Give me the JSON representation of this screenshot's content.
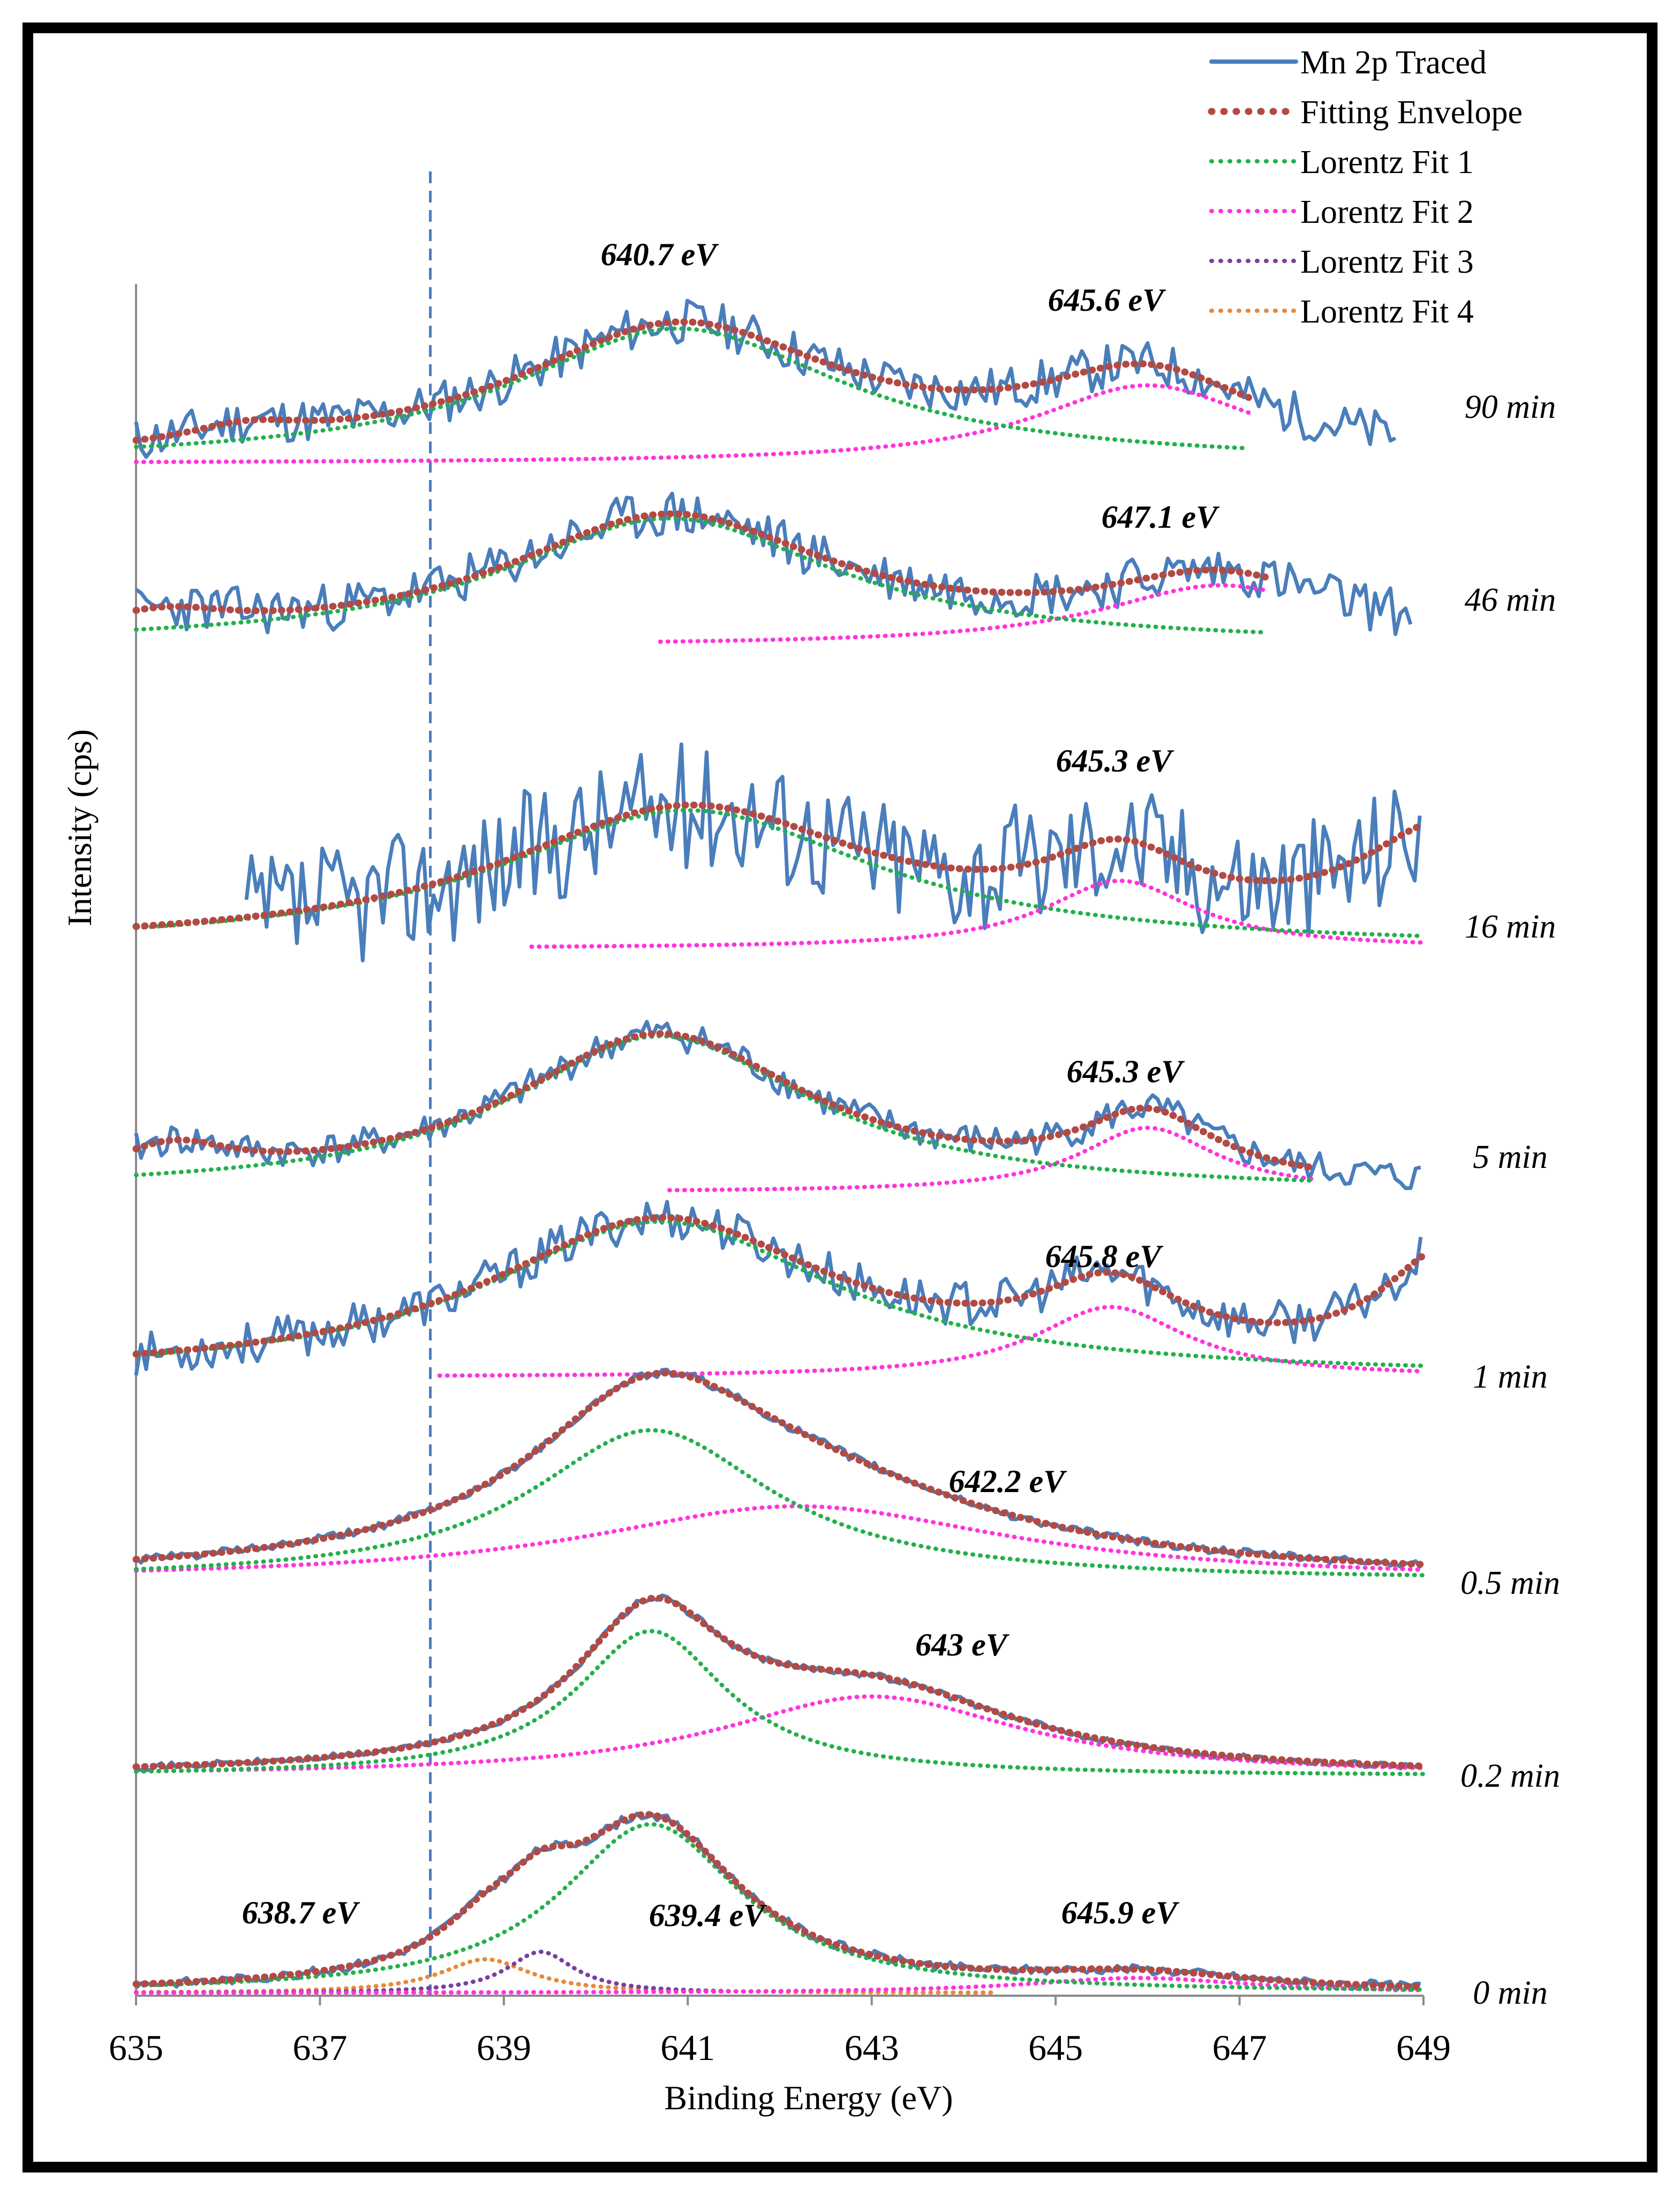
{
  "chart_data": {
    "type": "line",
    "xlabel": "Binding Energy (eV)",
    "ylabel": "Intensity (cps)",
    "xlim": [
      635,
      649
    ],
    "xticks": [
      "635",
      "637",
      "639",
      "641",
      "643",
      "645",
      "647",
      "649"
    ],
    "reference_line_x": 638.2,
    "legend": [
      {
        "name": "Mn 2p Traced",
        "color": "#4a7ebb",
        "style": "solid"
      },
      {
        "name": "Fitting Envelope",
        "color": "#b24a44",
        "style": "dotted"
      },
      {
        "name": "Lorentz Fit 1",
        "color": "#22b04b",
        "style": "dotted"
      },
      {
        "name": "Lorentz Fit 2",
        "color": "#ff33dd",
        "style": "dotted"
      },
      {
        "name": "Lorentz Fit 3",
        "color": "#7a3fa0",
        "style": "dotted"
      },
      {
        "name": "Lorentz Fit 4",
        "color": "#e8893a",
        "style": "dotted"
      }
    ],
    "panels": [
      {
        "time": "90 min",
        "peak_labels": [
          {
            "text": "640.7 eV",
            "x": 640.7
          },
          {
            "text": "645.6 eV",
            "x": 645.6
          }
        ],
        "fit1": {
          "center": 640.9,
          "width": 2.2,
          "height": 0.95,
          "from": 635.0,
          "to": 647.1
        },
        "fit2": {
          "center": 646.0,
          "width": 1.5,
          "height": 0.55,
          "from": 635.0,
          "to": 647.1
        },
        "envelope": {
          "from": 635.0,
          "to": 647.1,
          "bumps": [
            {
              "center": 636.2,
              "width": 0.8,
              "height": 0.12
            }
          ]
        },
        "traced": {
          "from": 635.0,
          "to": 648.7,
          "noise": 0.16,
          "seed": 11
        }
      },
      {
        "time": "46 min",
        "peak_labels": [
          {
            "text": "647.1 eV",
            "x": 647.1
          }
        ],
        "fit1": {
          "center": 640.8,
          "width": 2.2,
          "height": 0.95,
          "from": 635.0,
          "to": 647.3
        },
        "fit2": {
          "center": 646.8,
          "width": 1.6,
          "height": 0.45,
          "from": 640.7,
          "to": 647.3
        },
        "envelope": {
          "from": 635.0,
          "to": 647.3,
          "bumps": [
            {
              "center": 635.3,
              "width": 0.9,
              "height": 0.15
            }
          ]
        },
        "traced": {
          "from": 635.0,
          "to": 648.9,
          "noise": 0.18,
          "seed": 23
        }
      },
      {
        "time": "16 min",
        "peak_labels": [
          {
            "text": "645.3 eV",
            "x": 645.3
          }
        ],
        "fit1": {
          "center": 641.0,
          "width": 2.5,
          "height": 0.92,
          "from": 635.0,
          "to": 649.0
        },
        "fit2": {
          "center": 645.7,
          "width": 1.0,
          "height": 0.45,
          "from": 639.3,
          "to": 649.0
        },
        "envelope": {
          "from": 635.0,
          "to": 649.0,
          "bumps": [
            {
              "center": 649.3,
              "width": 1.2,
              "height": 0.75
            }
          ]
        },
        "traced": {
          "from": 636.2,
          "to": 649.0,
          "noise": 0.42,
          "seed": 37
        }
      },
      {
        "time": "5 min",
        "peak_labels": [
          {
            "text": "645.3 eV",
            "x": 645.3
          }
        ],
        "fit1": {
          "center": 640.7,
          "width": 2.0,
          "height": 0.97,
          "from": 635.0,
          "to": 647.8
        },
        "fit2": {
          "center": 646.0,
          "width": 0.9,
          "height": 0.4,
          "from": 640.8,
          "to": 647.8
        },
        "envelope": {
          "from": 635.0,
          "to": 647.8,
          "bumps": [
            {
              "center": 635.4,
              "width": 0.8,
              "height": 0.2
            }
          ]
        },
        "traced": {
          "from": 635.0,
          "to": 649.0,
          "noise": 0.1,
          "seed": 41
        }
      },
      {
        "time": "1 min",
        "peak_labels": [
          {
            "text": "645.8 eV",
            "x": 645.8
          }
        ],
        "fit1": {
          "center": 640.7,
          "width": 2.3,
          "height": 1.0,
          "from": 635.0,
          "to": 649.0
        },
        "fit2": {
          "center": 645.6,
          "width": 1.0,
          "height": 0.45,
          "from": 638.3,
          "to": 649.0
        },
        "envelope": {
          "from": 635.0,
          "to": 649.0,
          "bumps": [
            {
              "center": 649.3,
              "width": 0.9,
              "height": 0.75
            }
          ]
        },
        "traced": {
          "from": 635.0,
          "to": 649.0,
          "noise": 0.14,
          "seed": 53
        }
      },
      {
        "time": "0.5 min",
        "peak_labels": [
          {
            "text": "642.2 eV",
            "x": 642.2
          }
        ],
        "fit1": {
          "center": 640.6,
          "width": 1.6,
          "height": 0.85,
          "from": 635.0,
          "to": 649.0
        },
        "fit2": {
          "center": 642.2,
          "width": 2.8,
          "height": 0.42,
          "from": 635.0,
          "to": 649.0
        },
        "envelope": {
          "from": 635.0,
          "to": 649.0,
          "bumps": []
        },
        "traced": {
          "from": 635.0,
          "to": 649.0,
          "noise": 0.025,
          "seed": 61
        }
      },
      {
        "time": "0.2 min",
        "peak_labels": [
          {
            "text": "643 eV",
            "x": 643
          }
        ],
        "fit1": {
          "center": 640.6,
          "width": 1.0,
          "height": 0.82,
          "from": 635.0,
          "to": 649.0
        },
        "fit2": {
          "center": 643.0,
          "width": 2.0,
          "height": 0.45,
          "from": 635.0,
          "to": 649.0
        },
        "envelope": {
          "from": 635.0,
          "to": 649.0,
          "bumps": []
        },
        "traced": {
          "from": 635.0,
          "to": 649.0,
          "noise": 0.02,
          "seed": 71
        }
      },
      {
        "time": "0 min",
        "peak_labels": [
          {
            "text": "638.7 eV",
            "x": 638.7
          },
          {
            "text": "639.4 eV",
            "x": 639.4
          },
          {
            "text": "645.9 eV",
            "x": 645.9
          }
        ],
        "fit1": {
          "center": 640.6,
          "width": 1.2,
          "height": 0.9,
          "from": 635.0,
          "to": 649.0
        },
        "fit2": {
          "center": 645.9,
          "width": 1.5,
          "height": 0.08,
          "from": 635.0,
          "to": 649.0
        },
        "fit3": {
          "center": 639.4,
          "width": 0.45,
          "height": 0.22,
          "from": 635.0,
          "to": 641.5
        },
        "fit4": {
          "center": 638.8,
          "width": 0.6,
          "height": 0.18,
          "from": 635.0,
          "to": 644.3
        },
        "envelope": {
          "from": 635.0,
          "to": 649.0,
          "bumps": []
        },
        "traced": {
          "from": 635.0,
          "to": 649.0,
          "noise": 0.025,
          "seed": 83
        }
      }
    ]
  }
}
